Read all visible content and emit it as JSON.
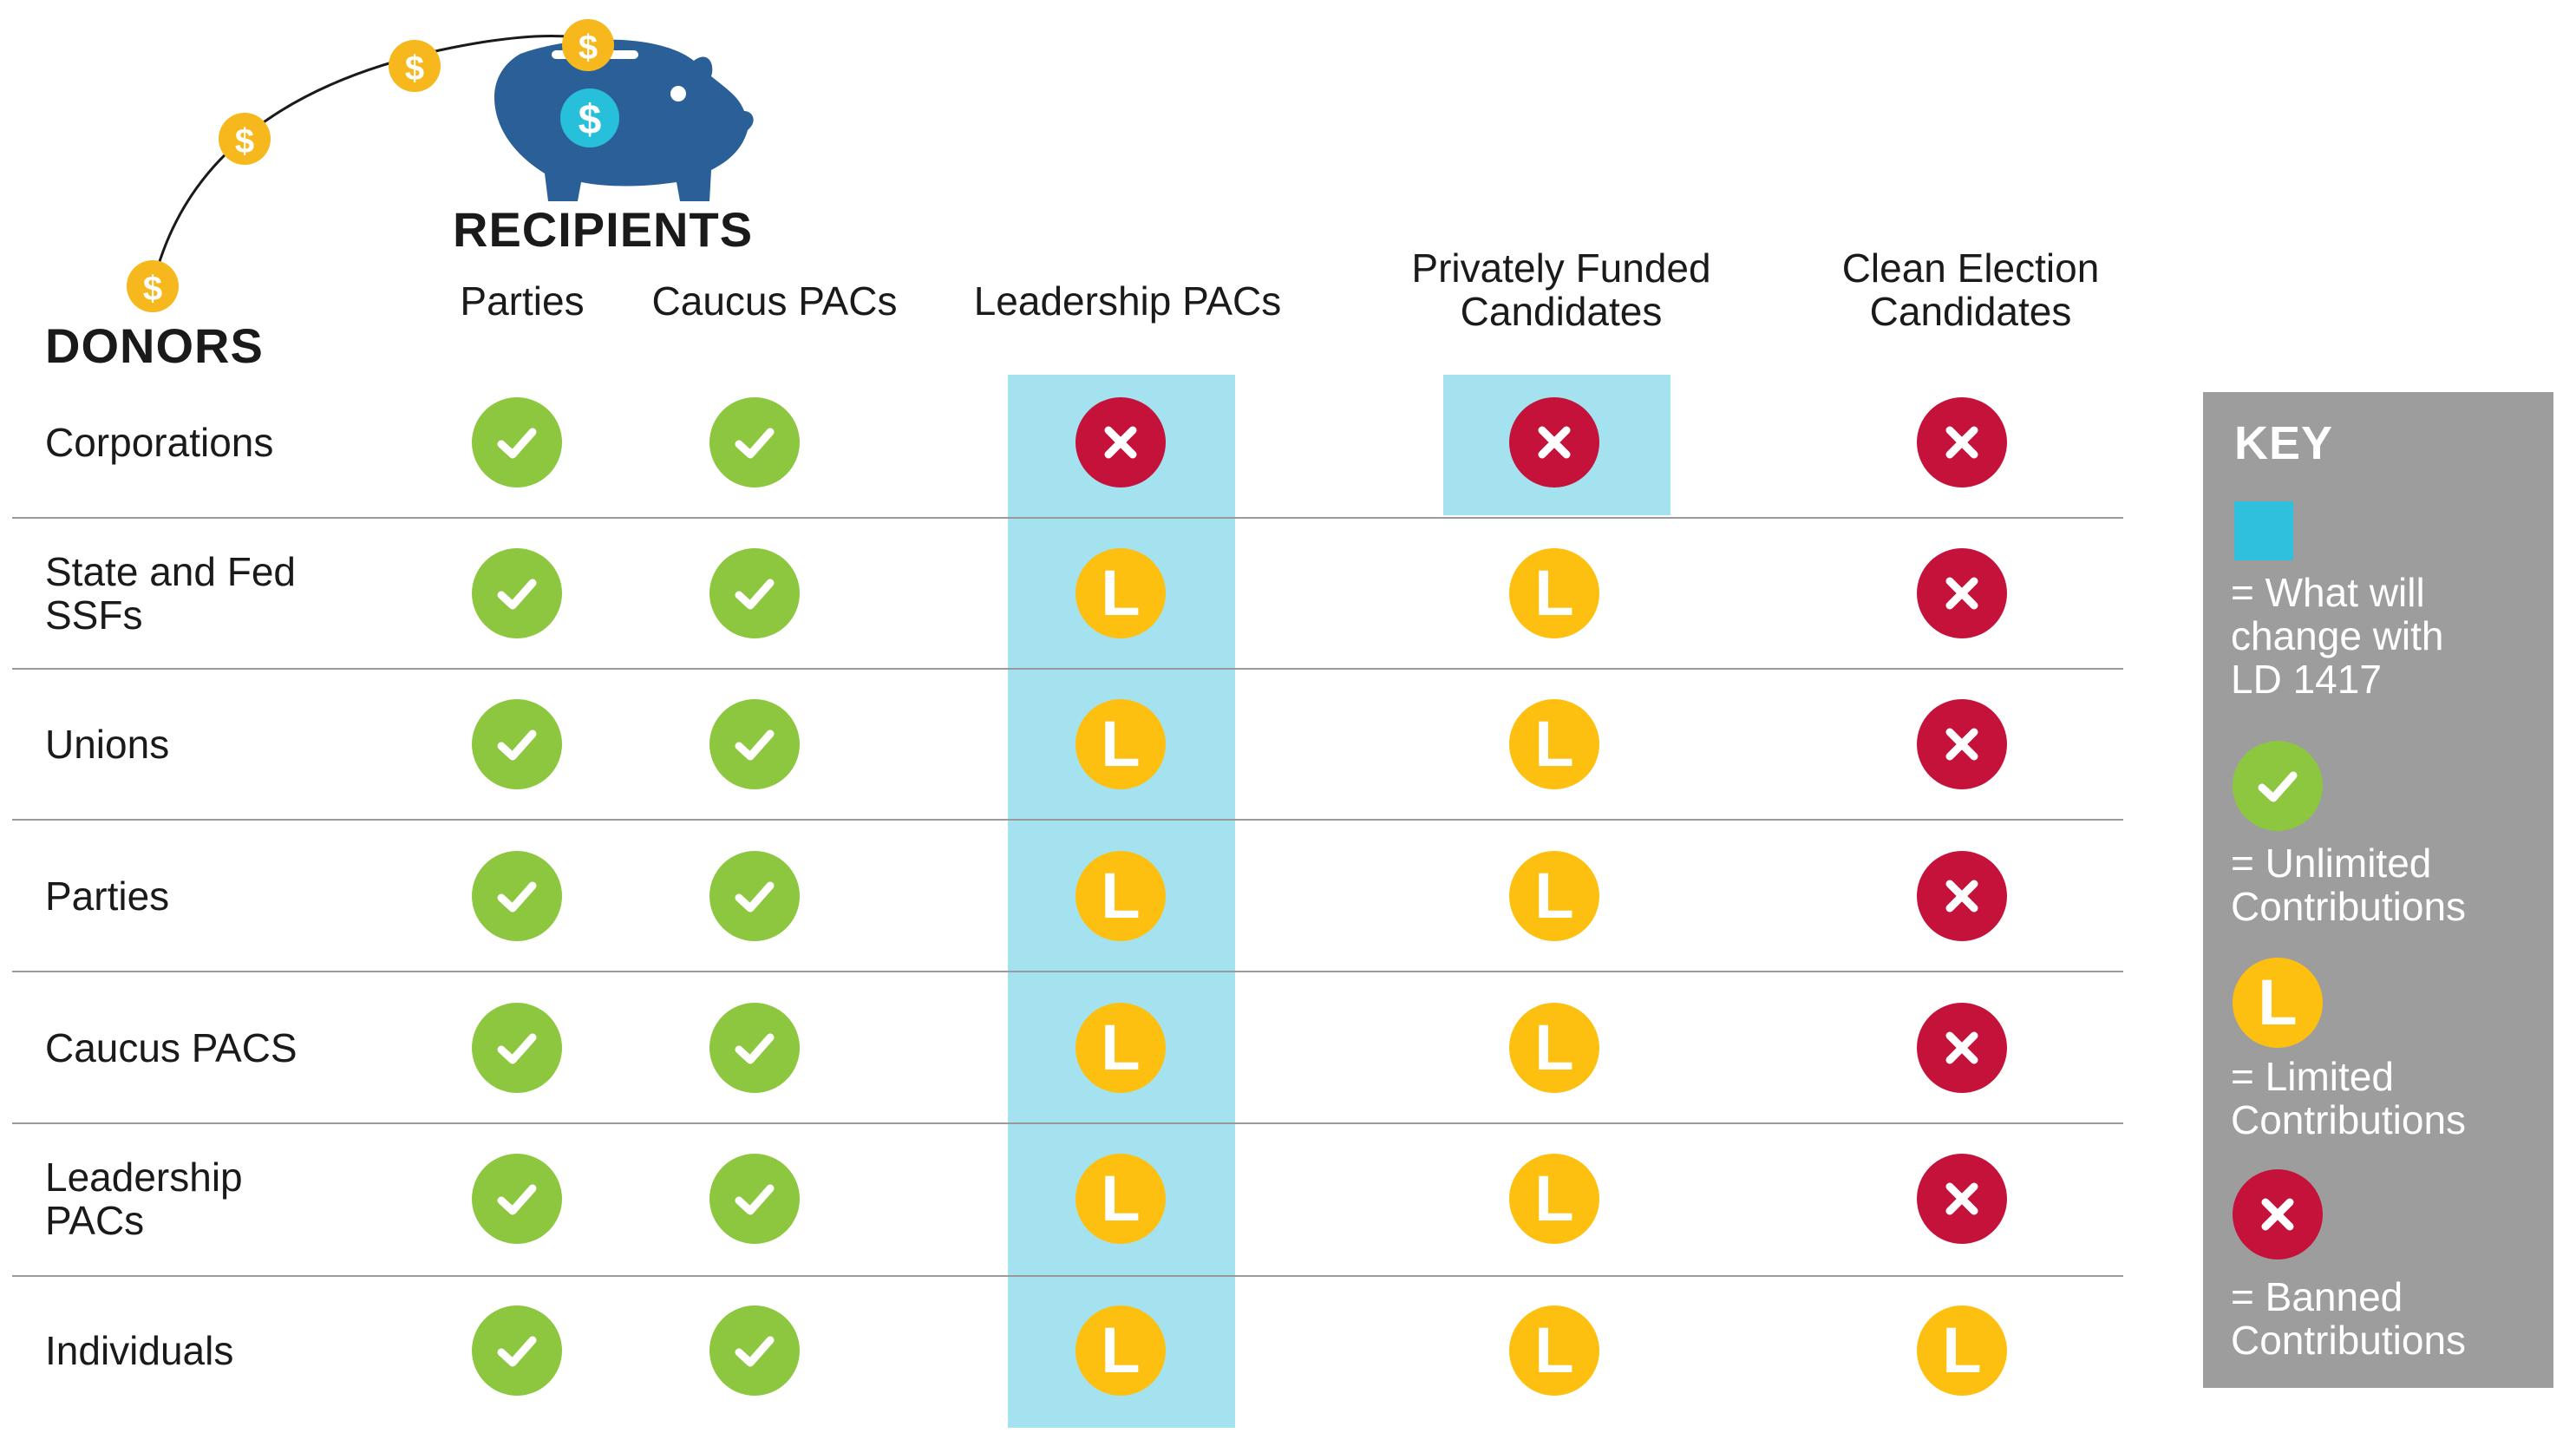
{
  "headers": {
    "recipients": "RECIPIENTS",
    "donors": "DONORS"
  },
  "columns": [
    {
      "label": "Parties"
    },
    {
      "label": "Caucus PACs"
    },
    {
      "label": "Leadership PACs"
    },
    {
      "label": "Privately Funded\nCandidates"
    },
    {
      "label": "Clean Election\nCandidates"
    }
  ],
  "rows": [
    {
      "label": "Corporations",
      "cells": [
        "U",
        "U",
        "B",
        "B",
        "B"
      ]
    },
    {
      "label": "State and Fed\nSSFs",
      "cells": [
        "U",
        "U",
        "L",
        "L",
        "B"
      ]
    },
    {
      "label": "Unions",
      "cells": [
        "U",
        "U",
        "L",
        "L",
        "B"
      ]
    },
    {
      "label": "Parties",
      "cells": [
        "U",
        "U",
        "L",
        "L",
        "B"
      ]
    },
    {
      "label": "Caucus PACS",
      "cells": [
        "U",
        "U",
        "L",
        "L",
        "B"
      ]
    },
    {
      "label": "Leadership\nPACs",
      "cells": [
        "U",
        "U",
        "L",
        "L",
        "B"
      ]
    },
    {
      "label": "Individuals",
      "cells": [
        "U",
        "U",
        "L",
        "L",
        "L"
      ]
    }
  ],
  "highlights": [
    {
      "column": 2,
      "rows": "all"
    },
    {
      "column": 3,
      "rows": [
        0
      ]
    }
  ],
  "symbols": {
    "U": {
      "icon": "check-icon",
      "color": "#8dc63f"
    },
    "L": {
      "icon": "limited-l-icon",
      "text": "L",
      "color": "#fdc010"
    },
    "B": {
      "icon": "x-icon",
      "color": "#c4123a"
    }
  },
  "key": {
    "title": "KEY",
    "items": [
      {
        "type": "swatch",
        "color": "#2ec0dc",
        "text": "= What will\nchange with\nLD 1417"
      },
      {
        "type": "U",
        "text": "= Unlimited\nContributions"
      },
      {
        "type": "L",
        "text": "= Limited\nContributions"
      },
      {
        "type": "B",
        "text": "= Banned\nContributions"
      }
    ]
  },
  "colors": {
    "highlight": "#a3e2ee",
    "piggy": "#2b5f98",
    "coin": "#f6b81c"
  }
}
